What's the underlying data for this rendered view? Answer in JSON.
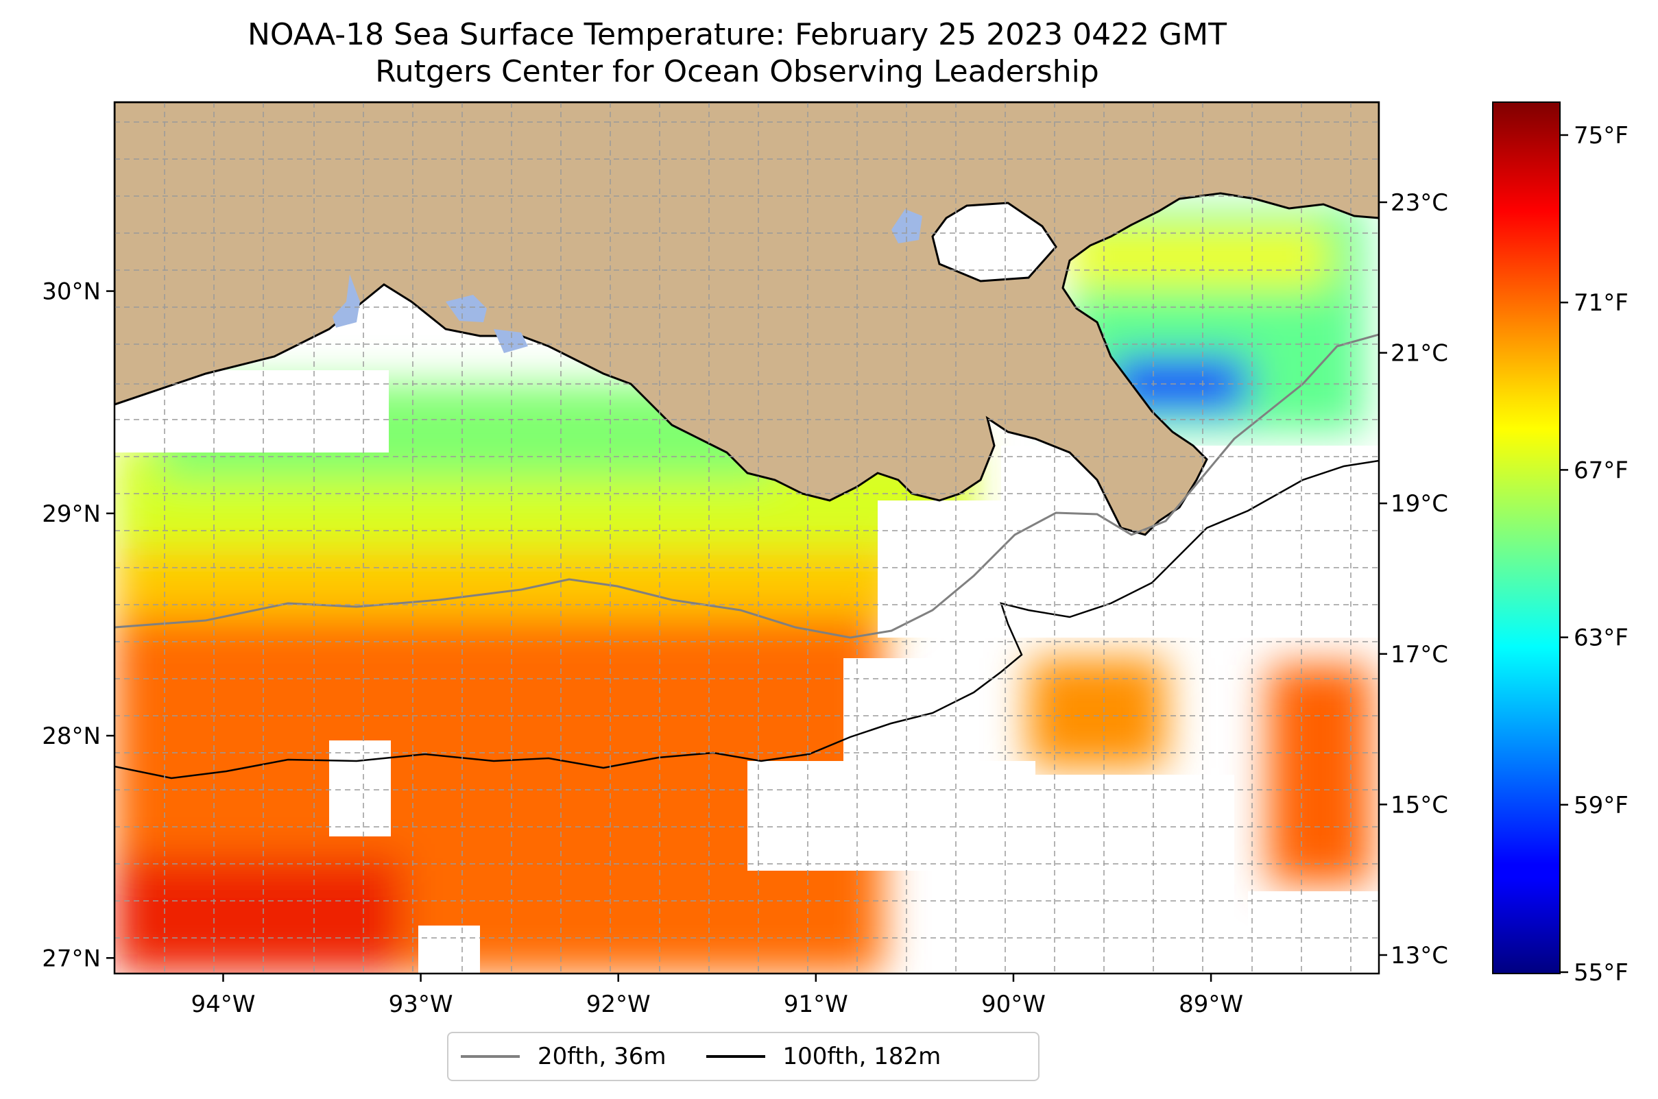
{
  "title": {
    "line1": "NOAA-18 Sea Surface Temperature: February 25 2023 0422 GMT",
    "line2": "Rutgers Center for Ocean Observing Leadership"
  },
  "map": {
    "lon_range": [
      -94.55,
      -88.15
    ],
    "lat_range": [
      26.93,
      30.85
    ],
    "lon_ticks": [
      {
        "value": -94,
        "label": "94°W"
      },
      {
        "value": -93,
        "label": "93°W"
      },
      {
        "value": -92,
        "label": "92°W"
      },
      {
        "value": -91,
        "label": "91°W"
      },
      {
        "value": -90,
        "label": "90°W"
      },
      {
        "value": -89,
        "label": "89°W"
      }
    ],
    "lat_ticks": [
      {
        "value": 30,
        "label": "30°N"
      },
      {
        "value": 29,
        "label": "29°N"
      },
      {
        "value": 28,
        "label": "28°N"
      },
      {
        "value": 27,
        "label": "27°N"
      }
    ],
    "land_color": "#cfb38c",
    "water_lake_color": "#9fb8e6",
    "gridlines": true
  },
  "colorbar": {
    "colormap": "jet",
    "celsius_ticks": [
      "23°C",
      "21°C",
      "19°C",
      "17°C",
      "15°C",
      "13°C"
    ],
    "fahrenheit_ticks": [
      "75°F",
      "71°F",
      "67°F",
      "63°F",
      "59°F",
      "55°F"
    ]
  },
  "legend": {
    "items": [
      {
        "label": "20fth, 36m",
        "color": "#808080"
      },
      {
        "label": "100fth, 182m",
        "color": "#000000"
      }
    ]
  }
}
